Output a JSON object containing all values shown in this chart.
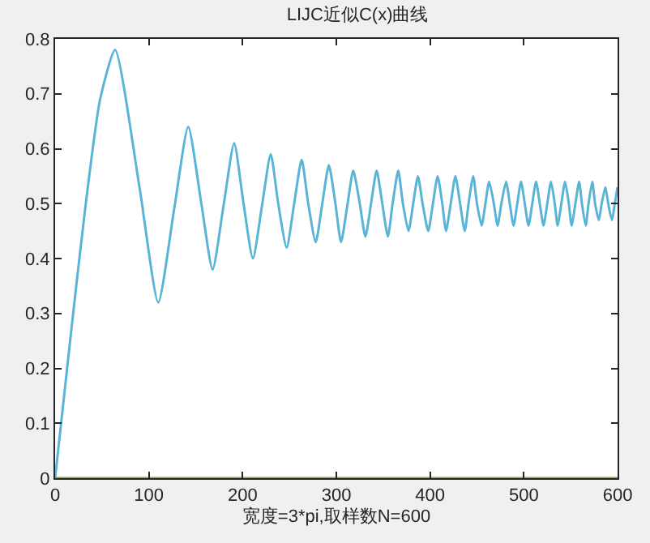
{
  "chart_data": {
    "type": "line",
    "title": "LIJC近似C(x)曲线",
    "xlabel": "宽度=3*pi,取样数N=600",
    "xlim": [
      0,
      600
    ],
    "xticks": [
      0,
      100,
      200,
      300,
      400,
      500,
      600
    ],
    "ylim": [
      0,
      0.8
    ],
    "yticks": [
      0,
      0.1,
      0.2,
      0.3,
      0.4,
      0.5,
      0.6,
      0.7,
      0.8
    ],
    "grid": false,
    "marker": "none",
    "line_style": "solid",
    "series": [
      {
        "color": "#5ab4d6",
        "x": [
          0,
          16,
          32,
          48,
          64,
          90,
          110,
          127,
          142,
          156,
          168,
          180,
          191,
          201,
          211,
          221,
          230,
          238,
          247,
          255,
          263,
          270,
          278,
          285,
          292,
          299,
          305,
          312,
          318,
          325,
          331,
          337,
          343,
          349,
          355,
          360,
          366,
          371,
          377,
          382,
          387,
          392,
          398,
          403,
          408,
          413,
          417,
          422,
          427,
          432,
          437,
          441,
          446,
          450,
          455,
          459,
          463,
          468,
          472,
          476,
          481,
          485,
          489,
          493,
          497,
          501,
          505,
          509,
          513,
          517,
          521,
          525,
          529,
          533,
          536,
          540,
          544,
          548,
          551,
          555,
          559,
          562,
          566,
          569,
          573,
          576,
          580,
          583,
          587,
          590,
          594,
          597,
          600
        ],
        "values": [
          0,
          0.25,
          0.49,
          0.69,
          0.78,
          0.53,
          0.32,
          0.49,
          0.64,
          0.5,
          0.38,
          0.5,
          0.61,
          0.5,
          0.4,
          0.5,
          0.59,
          0.5,
          0.42,
          0.5,
          0.58,
          0.5,
          0.43,
          0.5,
          0.57,
          0.5,
          0.43,
          0.5,
          0.56,
          0.5,
          0.44,
          0.5,
          0.56,
          0.5,
          0.44,
          0.5,
          0.56,
          0.5,
          0.45,
          0.5,
          0.55,
          0.5,
          0.45,
          0.5,
          0.55,
          0.5,
          0.45,
          0.5,
          0.55,
          0.5,
          0.45,
          0.5,
          0.55,
          0.5,
          0.46,
          0.5,
          0.54,
          0.5,
          0.46,
          0.5,
          0.54,
          0.5,
          0.46,
          0.5,
          0.54,
          0.5,
          0.46,
          0.5,
          0.54,
          0.5,
          0.46,
          0.5,
          0.54,
          0.5,
          0.46,
          0.5,
          0.54,
          0.5,
          0.46,
          0.5,
          0.54,
          0.5,
          0.46,
          0.5,
          0.54,
          0.5,
          0.47,
          0.5,
          0.53,
          0.5,
          0.47,
          0.5,
          0.53
        ]
      },
      {
        "color": "#77ac30",
        "x": [
          0,
          600
        ],
        "values": [
          0,
          0
        ]
      }
    ]
  }
}
